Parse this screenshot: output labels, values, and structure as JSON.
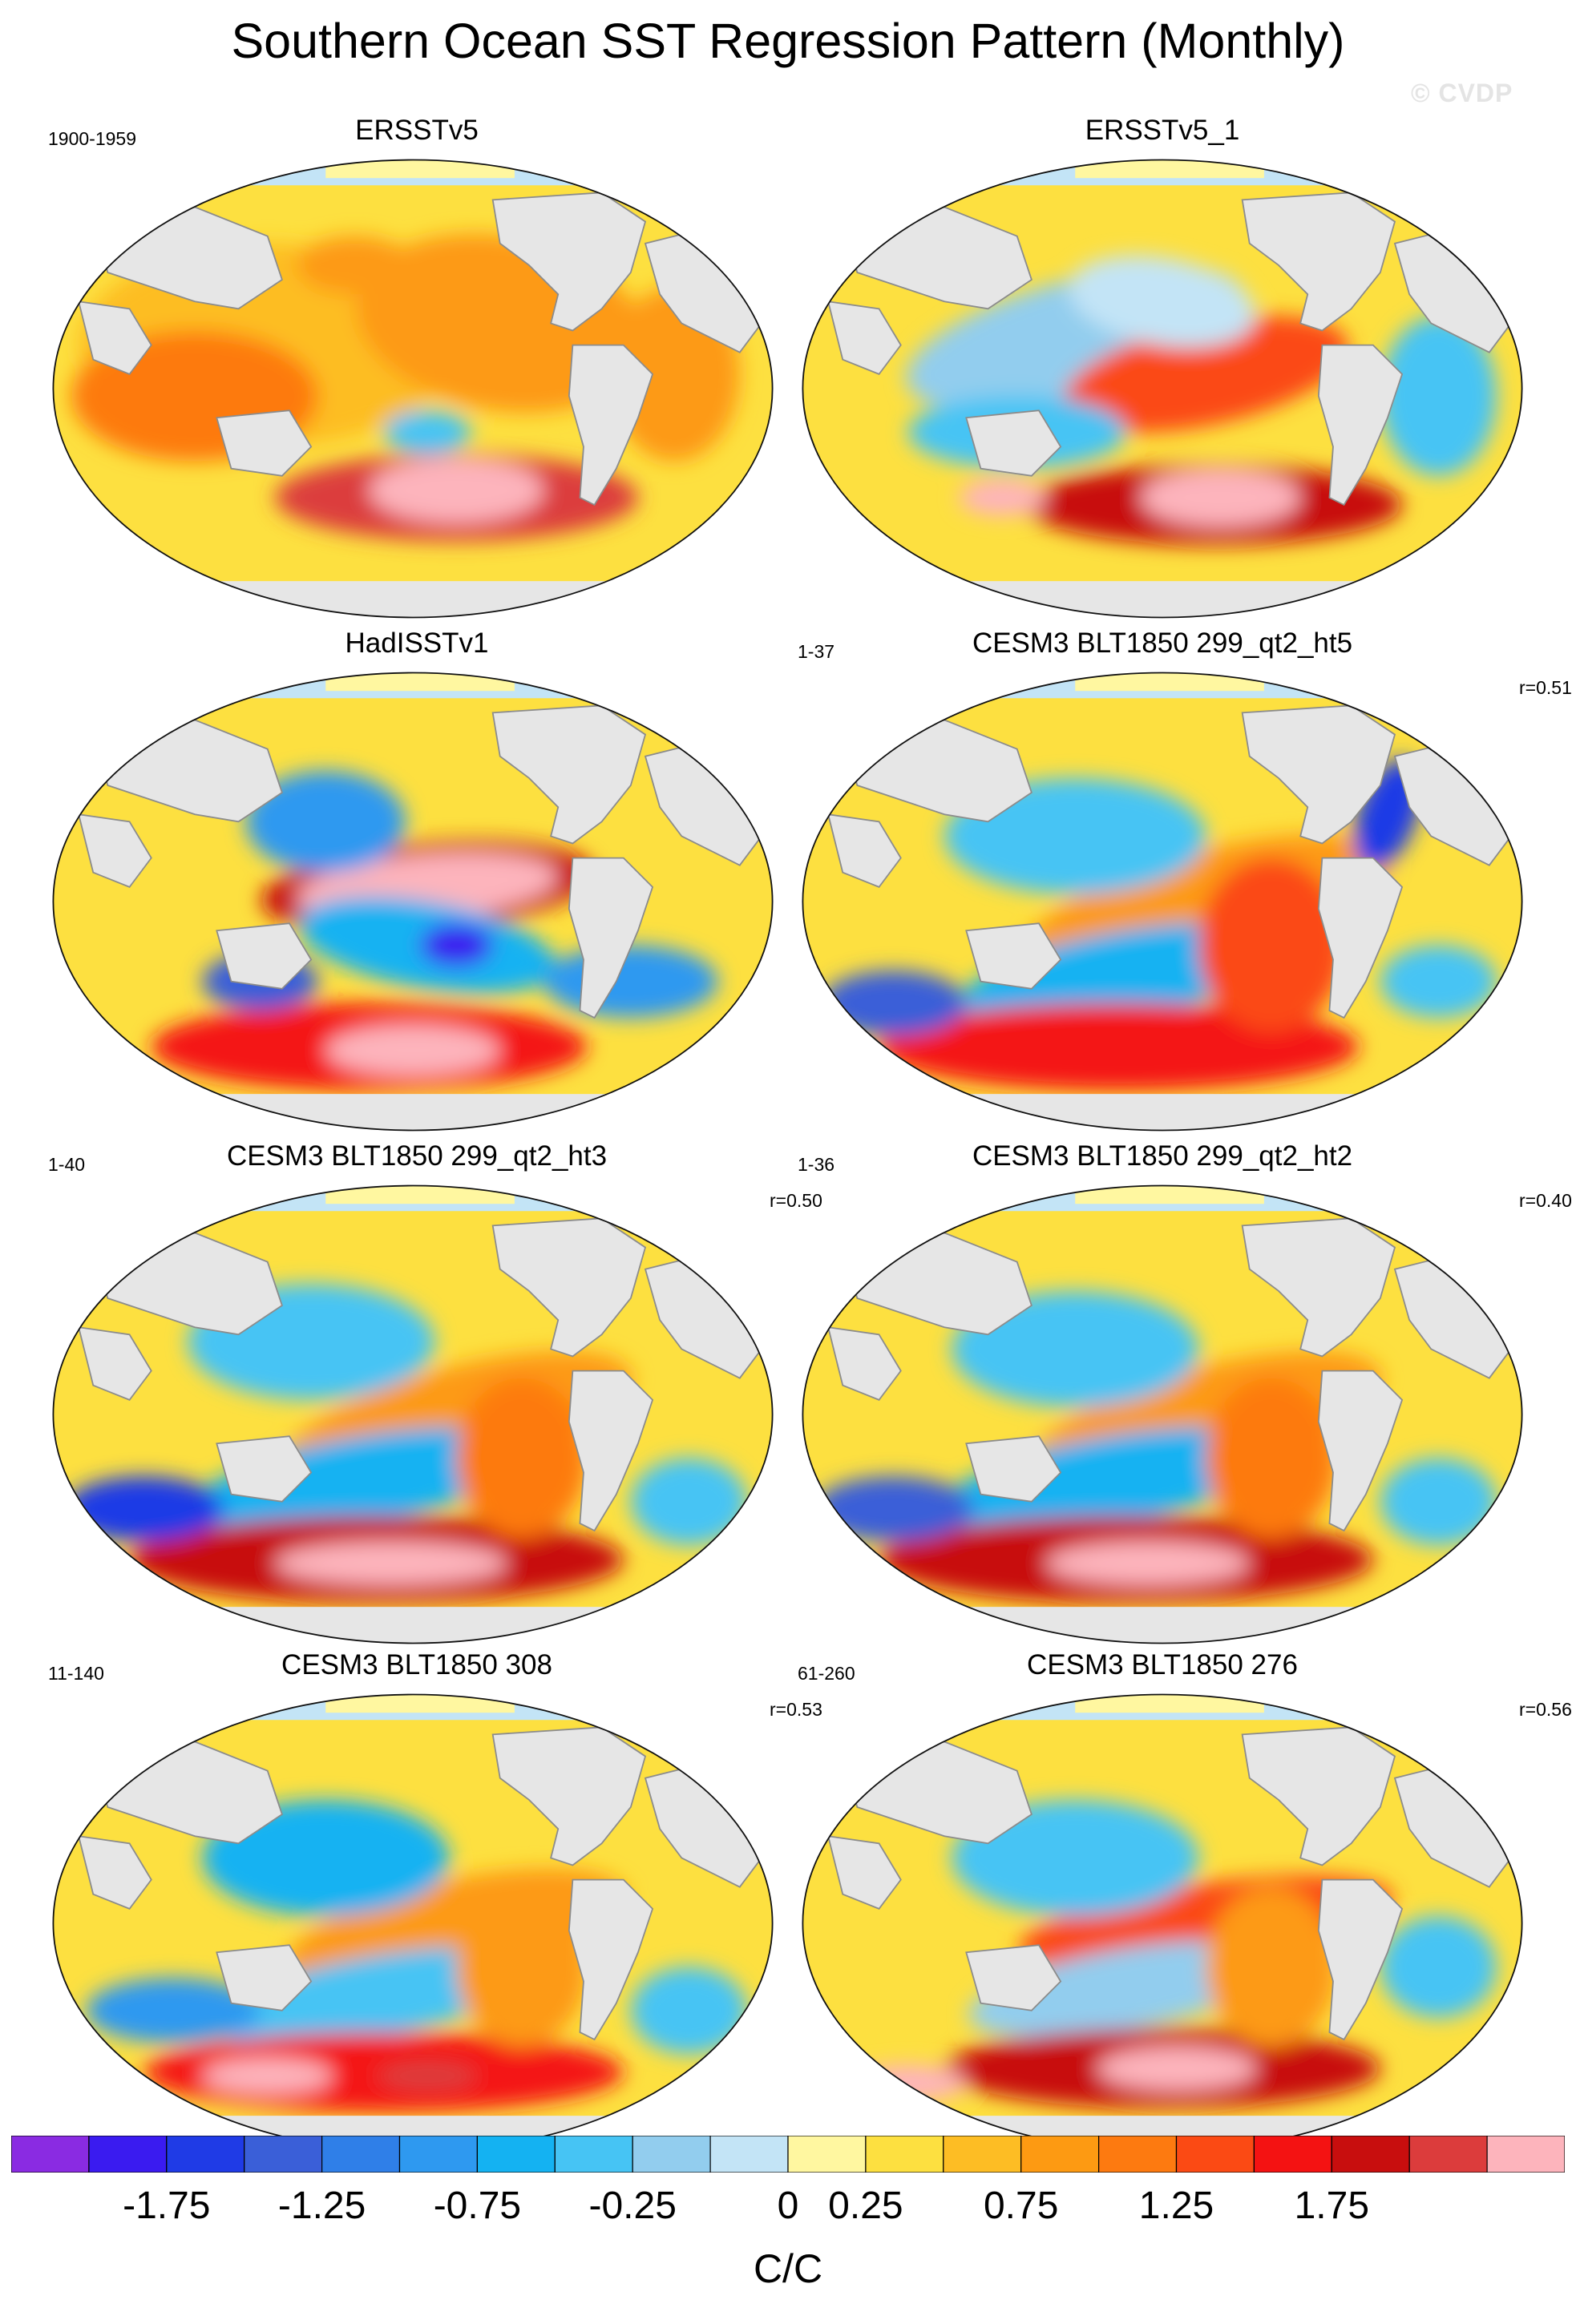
{
  "title": "Southern Ocean SST Regression Pattern (Monthly)",
  "watermark": "© CVDP",
  "panels": [
    {
      "title": "ERSSTv5",
      "left_label": "1900-1959",
      "right_label": ""
    },
    {
      "title": "ERSSTv5_1",
      "left_label": "",
      "right_label": ""
    },
    {
      "title": "HadISSTv1",
      "left_label": "",
      "right_label": ""
    },
    {
      "title": "CESM3 BLT1850 299_qt2_ht5",
      "left_label": "1-37",
      "right_label": "r=0.51"
    },
    {
      "title": "CESM3 BLT1850 299_qt2_ht3",
      "left_label": "1-40",
      "right_label": "r=0.50"
    },
    {
      "title": "CESM3 BLT1850 299_qt2_ht2",
      "left_label": "1-36",
      "right_label": "r=0.40"
    },
    {
      "title": "CESM3 BLT1850 308",
      "left_label": "11-140",
      "right_label": "r=0.53"
    },
    {
      "title": "CESM3 BLT1850 276",
      "left_label": "61-260",
      "right_label": "r=0.56"
    }
  ],
  "colorbar": {
    "units": "C/C",
    "tick_labels": [
      "-1.75",
      "-1.25",
      "-0.75",
      "-0.25",
      "0",
      "0.25",
      "0.75",
      "1.25",
      "1.75"
    ],
    "colors": [
      "#8a2be2",
      "#3a1bf0",
      "#1f3be6",
      "#3a5fd8",
      "#2f7fe8",
      "#2e99f0",
      "#14b2f2",
      "#46c4f4",
      "#92cdee",
      "#c3e4f6",
      "#fff7a0",
      "#fde040",
      "#fdbd24",
      "#fd9a12",
      "#fd7a10",
      "#fb4a14",
      "#f41212",
      "#c80e0e",
      "#dc3c3c",
      "#fdb4bc"
    ]
  },
  "colors": {
    "land": "#e6e6e6",
    "coast": "#8c8c8c"
  }
}
